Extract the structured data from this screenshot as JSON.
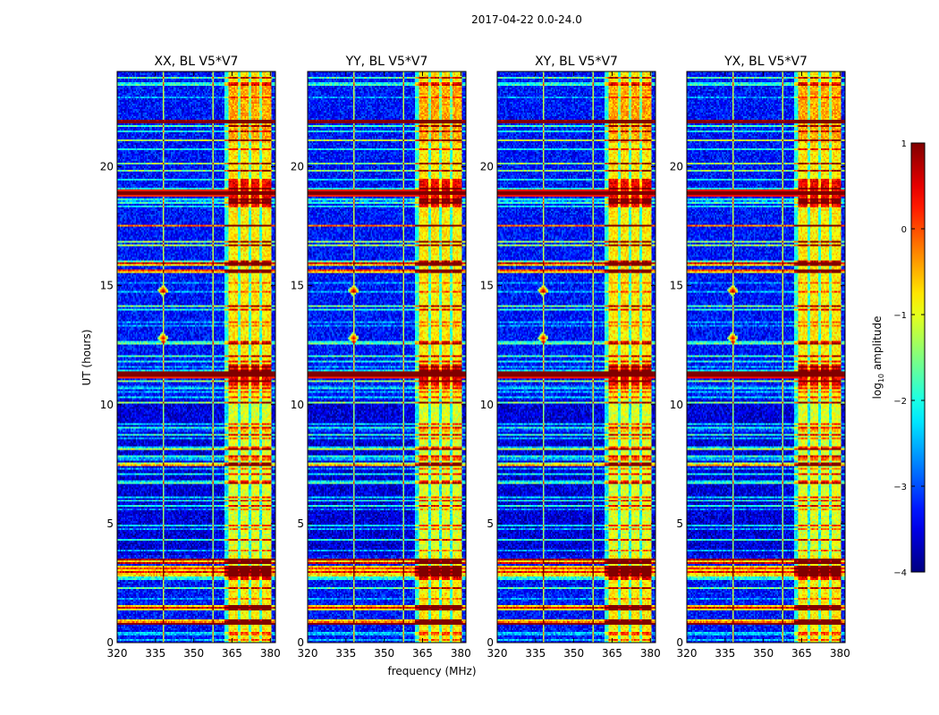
{
  "chart_data": {
    "type": "heatmap",
    "title": "2017-04-22 0.0-24.0",
    "xlabel": "frequency (MHz)",
    "ylabel": "UT (hours)",
    "xlim": [
      320,
      382
    ],
    "ylim": [
      0,
      24
    ],
    "xticks": [
      "320",
      "335",
      "350",
      "365",
      "380"
    ],
    "xtick_values": [
      320,
      335,
      350,
      365,
      380
    ],
    "yticks": [
      "0",
      "5",
      "10",
      "15",
      "20"
    ],
    "ytick_values": [
      0,
      5,
      10,
      15,
      20
    ],
    "panels": [
      {
        "title": "XX, BL V5*V7"
      },
      {
        "title": "YY, BL V5*V7"
      },
      {
        "title": "XY, BL V5*V7"
      },
      {
        "title": "YX, BL V5*V7"
      }
    ],
    "colorbar": {
      "label": "log10 amplitude",
      "label_base": "log",
      "label_sub": "10",
      "label_rest": " amplitude",
      "range": [
        -4,
        1
      ],
      "ticks": [
        "1",
        "0",
        "−1",
        "−2",
        "−3",
        "−4"
      ],
      "tick_values": [
        1,
        0,
        -1,
        -2,
        -3,
        -4
      ],
      "colormap": "jet"
    },
    "features": {
      "strong_band_MHz": [
        363.5,
        380.5
      ],
      "band_subchannel_gaps_MHz": [
        367.6,
        372.0,
        376.3
      ],
      "hot_time_ranges_h": [
        [
          18.4,
          19.4
        ],
        [
          10.8,
          11.7
        ]
      ],
      "broadband_rfi_rows_h": [
        18.9,
        15.9,
        15.6,
        11.3,
        3.4,
        3.1,
        2.9,
        1.5,
        0.85,
        21.9
      ],
      "spot_features": [
        {
          "freq_MHz": 338,
          "time_h": 14.8
        },
        {
          "freq_MHz": 338,
          "time_h": 12.8
        }
      ],
      "vertical_lines_MHz": [
        338,
        357.5,
        364.0,
        369.0,
        373.5,
        378.0
      ]
    }
  }
}
